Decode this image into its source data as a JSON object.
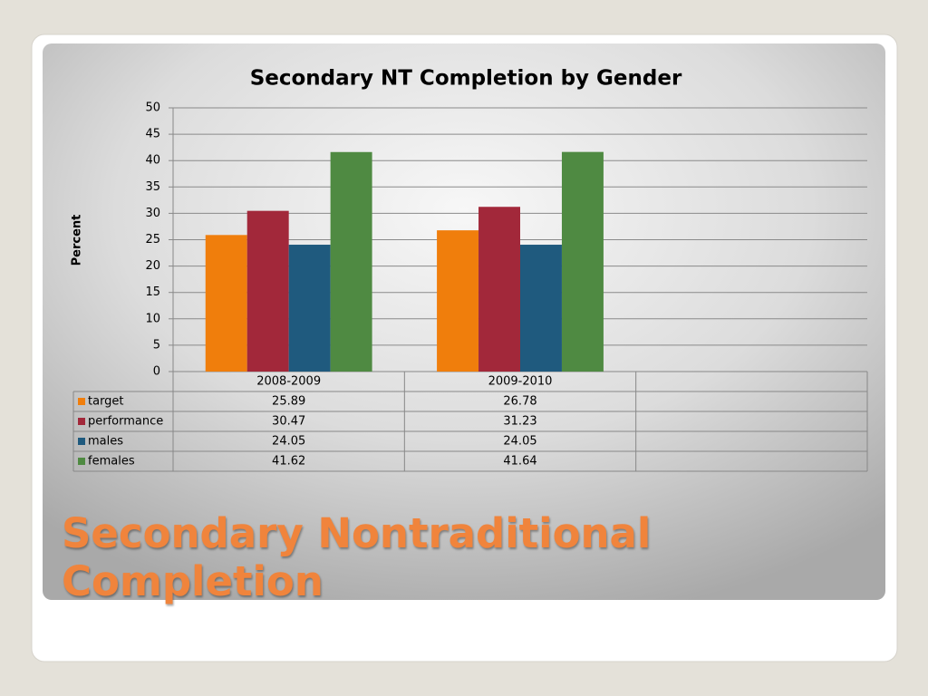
{
  "chart_data": {
    "type": "bar",
    "title": "Secondary NT Completion by Gender",
    "ylabel": "Percent",
    "categories": [
      "2008-2009",
      "2009-2010",
      null
    ],
    "series": [
      {
        "name": "target",
        "color": "#f07e0c",
        "values": [
          25.89,
          26.78,
          null
        ]
      },
      {
        "name": "performance",
        "color": "#a2283a",
        "values": [
          30.47,
          31.23,
          null
        ]
      },
      {
        "name": "males",
        "color": "#1f5a7e",
        "values": [
          24.05,
          24.05,
          null
        ]
      },
      {
        "name": "females",
        "color": "#4f8a42",
        "values": [
          41.62,
          41.64,
          null
        ]
      }
    ],
    "ylim": [
      0,
      50
    ],
    "yticks": [
      0,
      5,
      10,
      15,
      20,
      25,
      30,
      35,
      40,
      45,
      50
    ],
    "grid": true
  },
  "slide_title": "Secondary Nontraditional Completion"
}
